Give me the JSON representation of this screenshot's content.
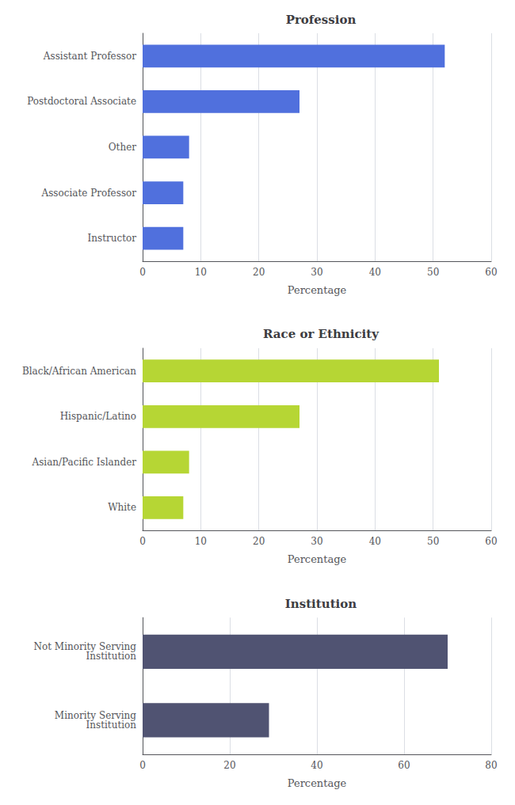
{
  "chart_data": [
    {
      "type": "bar",
      "orientation": "horizontal",
      "title": "Profession",
      "categories": [
        "Assistant Professor",
        "Postdoctoral Associate",
        "Other",
        "Associate Professor",
        "Instructor"
      ],
      "values": [
        52,
        27,
        8,
        7,
        7
      ],
      "xlabel": "Percentage",
      "xlim": [
        0,
        60
      ],
      "xticks": [
        0,
        10,
        20,
        30,
        40,
        50,
        60
      ],
      "grid": true
    },
    {
      "type": "bar",
      "orientation": "horizontal",
      "title": "Race or Ethnicity",
      "categories": [
        "Black/African American",
        "Hispanic/Latino",
        "Asian/Pacific Islander",
        "White"
      ],
      "values": [
        51,
        27,
        8,
        7
      ],
      "xlabel": "Percentage",
      "xlim": [
        0,
        60
      ],
      "xticks": [
        0,
        10,
        20,
        30,
        40,
        50,
        60
      ],
      "grid": true
    },
    {
      "type": "bar",
      "orientation": "horizontal",
      "title": "Institution",
      "categories": [
        "Not Minority Serving\nInstitution",
        "Minority Serving\nInstitution"
      ],
      "values": [
        70,
        29
      ],
      "xlabel": "Percentage",
      "xlim": [
        0,
        80
      ],
      "xticks": [
        0,
        20,
        40,
        60,
        80
      ],
      "grid": true
    }
  ]
}
